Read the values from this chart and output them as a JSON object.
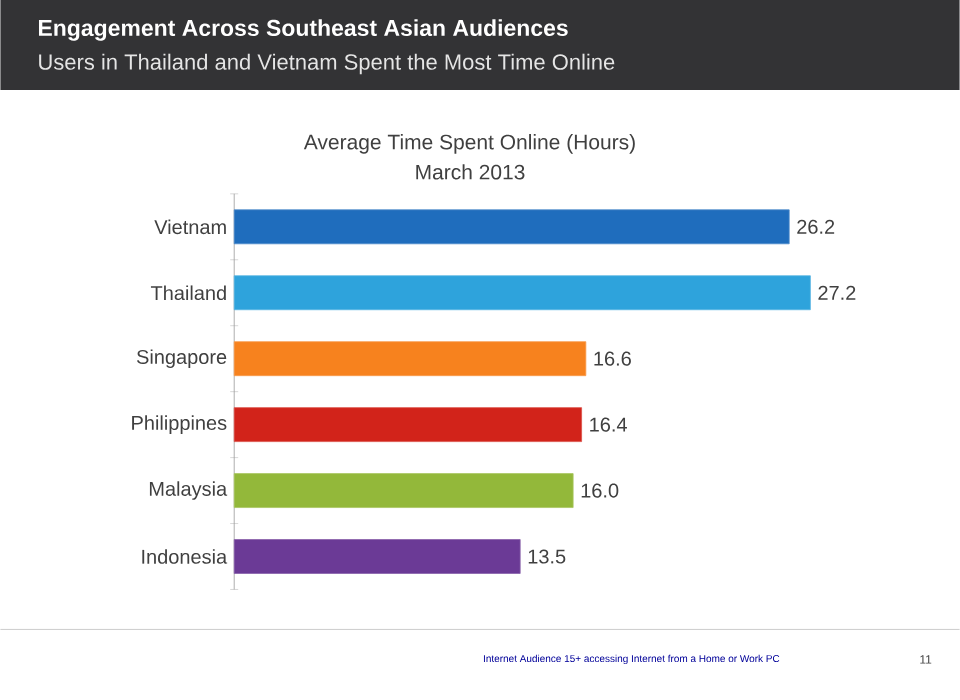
{
  "chart_data": {
    "type": "bar",
    "orientation": "horizontal",
    "title": "Engagement Across Southeast Asian Audiences",
    "subtitle": "Users in Thailand and Vietnam Spent the Most Time Online",
    "annotations": [
      "Average Time Spent Online (Hours)",
      "March 2013",
      "Internet Audience 15+ accessing Internet from a Home or Work PC",
      "11"
    ],
    "categories": [
      "Vietnam",
      "Thailand",
      "Singapore",
      "Philippines",
      "Malaysia",
      "Indonesia"
    ],
    "values": [
      26.2,
      27.2,
      16.6,
      16.4,
      16.0,
      13.5
    ],
    "colors": [
      "#1f6dbd",
      "#2ea3dc",
      "#f7821e",
      "#d2231a",
      "#93b83a",
      "#6b3a96"
    ],
    "value_labels": [
      "26.2",
      "27.2",
      "16.6",
      "16.4",
      "16.0",
      "13.5"
    ]
  }
}
